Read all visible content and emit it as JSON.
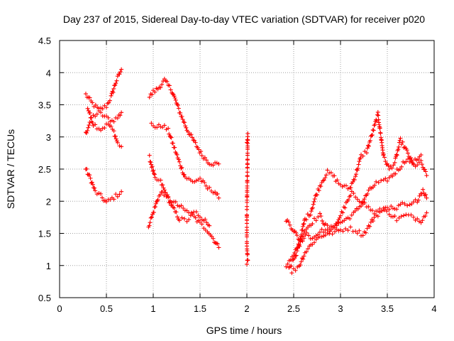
{
  "chart_data": {
    "type": "scatter",
    "title": "Day 237 of 2015, Sidereal Day-to-day VTEC variation (SDTVAR) for receiver p020",
    "xlabel": "GPS time / hours",
    "ylabel": "SDTVAR / TECUs",
    "xlim": [
      0,
      4
    ],
    "ylim": [
      0.5,
      4.5
    ],
    "xticks": [
      0,
      0.5,
      1,
      1.5,
      2,
      2.5,
      3,
      3.5,
      4
    ],
    "xtick_labels": [
      "0",
      "0.5",
      "1",
      "1.5",
      "2",
      "2.5",
      "3",
      "3.5",
      "4"
    ],
    "yticks": [
      0.5,
      1,
      1.5,
      2,
      2.5,
      3,
      3.5,
      4,
      4.5
    ],
    "ytick_labels": [
      "0.5",
      "1",
      "1.5",
      "2",
      "2.5",
      "3",
      "3.5",
      "4",
      "4.5"
    ],
    "grid": true,
    "marker": "+",
    "color": "#ff0000",
    "tracks": [
      [
        [
          0.28,
          3.66
        ],
        [
          0.35,
          3.52
        ],
        [
          0.42,
          3.42
        ],
        [
          0.5,
          3.48
        ],
        [
          0.55,
          3.62
        ],
        [
          0.6,
          3.85
        ],
        [
          0.66,
          4.05
        ]
      ],
      [
        [
          0.28,
          3.05
        ],
        [
          0.34,
          3.3
        ],
        [
          0.42,
          3.38
        ],
        [
          0.5,
          3.3
        ],
        [
          0.56,
          3.25
        ],
        [
          0.62,
          3.3
        ],
        [
          0.66,
          3.38
        ]
      ],
      [
        [
          0.3,
          3.45
        ],
        [
          0.36,
          3.2
        ],
        [
          0.44,
          3.12
        ],
        [
          0.52,
          3.2
        ],
        [
          0.58,
          3.08
        ],
        [
          0.62,
          2.9
        ],
        [
          0.66,
          2.85
        ]
      ],
      [
        [
          0.28,
          2.5
        ],
        [
          0.33,
          2.35
        ],
        [
          0.38,
          2.15
        ],
        [
          0.44,
          2.08
        ],
        [
          0.5,
          1.98
        ],
        [
          0.56,
          2.04
        ],
        [
          0.62,
          2.1
        ],
        [
          0.66,
          2.15
        ]
      ],
      [
        [
          0.96,
          3.62
        ],
        [
          1.0,
          3.7
        ],
        [
          1.05,
          3.75
        ],
        [
          1.12,
          3.88
        ],
        [
          1.2,
          3.72
        ],
        [
          1.28,
          3.4
        ],
        [
          1.36,
          3.12
        ],
        [
          1.44,
          2.92
        ],
        [
          1.52,
          2.72
        ],
        [
          1.6,
          2.6
        ],
        [
          1.66,
          2.58
        ],
        [
          1.7,
          2.58
        ]
      ],
      [
        [
          0.98,
          3.2
        ],
        [
          1.04,
          3.15
        ],
        [
          1.1,
          3.18
        ],
        [
          1.16,
          3.1
        ],
        [
          1.22,
          2.85
        ],
        [
          1.28,
          2.6
        ],
        [
          1.34,
          2.38
        ],
        [
          1.42,
          2.3
        ],
        [
          1.5,
          2.35
        ],
        [
          1.58,
          2.2
        ],
        [
          1.66,
          2.15
        ],
        [
          1.7,
          2.05
        ]
      ],
      [
        [
          0.96,
          2.68
        ],
        [
          1.02,
          2.35
        ],
        [
          1.08,
          2.3
        ],
        [
          1.14,
          2.1
        ],
        [
          1.2,
          1.92
        ],
        [
          1.28,
          1.72
        ],
        [
          1.36,
          1.7
        ],
        [
          1.42,
          1.78
        ],
        [
          1.5,
          1.65
        ],
        [
          1.58,
          1.55
        ],
        [
          1.64,
          1.42
        ],
        [
          1.7,
          1.28
        ]
      ],
      [
        [
          0.95,
          1.62
        ],
        [
          1.0,
          1.82
        ],
        [
          1.05,
          2.05
        ],
        [
          1.1,
          2.15
        ],
        [
          1.16,
          2.05
        ],
        [
          1.22,
          1.98
        ],
        [
          1.3,
          1.9
        ],
        [
          1.38,
          1.82
        ],
        [
          1.46,
          1.82
        ],
        [
          1.54,
          1.72
        ],
        [
          1.6,
          1.62
        ]
      ],
      [
        [
          2.0,
          2.95
        ],
        [
          2.01,
          3.02
        ],
        [
          2.0,
          1.82
        ],
        [
          2.0,
          1.4
        ],
        [
          2.0,
          1.32
        ],
        [
          2.01,
          1.08
        ],
        [
          2.0,
          1.02
        ]
      ],
      [
        [
          2.42,
          1.72
        ],
        [
          2.5,
          1.55
        ],
        [
          2.56,
          1.4
        ],
        [
          2.62,
          1.55
        ],
        [
          2.7,
          1.68
        ],
        [
          2.78,
          1.78
        ],
        [
          2.84,
          1.62
        ],
        [
          2.9,
          1.58
        ],
        [
          2.98,
          1.65
        ],
        [
          3.06,
          1.72
        ],
        [
          3.14,
          1.8
        ],
        [
          3.22,
          1.95
        ],
        [
          3.3,
          2.15
        ],
        [
          3.38,
          2.28
        ],
        [
          3.46,
          2.3
        ],
        [
          3.54,
          2.38
        ],
        [
          3.62,
          2.5
        ],
        [
          3.7,
          2.65
        ],
        [
          3.78,
          2.6
        ],
        [
          3.86,
          2.72
        ]
      ],
      [
        [
          2.42,
          1.0
        ],
        [
          2.5,
          1.15
        ],
        [
          2.56,
          1.35
        ],
        [
          2.62,
          1.72
        ],
        [
          2.68,
          1.82
        ],
        [
          2.74,
          2.1
        ],
        [
          2.8,
          2.3
        ],
        [
          2.86,
          2.45
        ],
        [
          2.92,
          2.4
        ],
        [
          2.98,
          2.28
        ],
        [
          3.04,
          2.22
        ],
        [
          3.1,
          2.2
        ],
        [
          3.16,
          2.4
        ],
        [
          3.22,
          2.7
        ],
        [
          3.28,
          2.78
        ],
        [
          3.34,
          3.05
        ],
        [
          3.4,
          3.35
        ],
        [
          3.46,
          2.7
        ],
        [
          3.52,
          2.5
        ],
        [
          3.58,
          2.6
        ],
        [
          3.64,
          2.95
        ],
        [
          3.7,
          2.8
        ],
        [
          3.78,
          2.55
        ],
        [
          3.86,
          2.6
        ],
        [
          3.92,
          2.4
        ]
      ],
      [
        [
          2.45,
          0.95
        ],
        [
          2.52,
          1.15
        ],
        [
          2.58,
          1.38
        ],
        [
          2.64,
          1.5
        ],
        [
          2.7,
          1.42
        ],
        [
          2.76,
          1.5
        ],
        [
          2.82,
          1.55
        ],
        [
          2.88,
          1.52
        ],
        [
          2.94,
          1.6
        ],
        [
          3.0,
          1.78
        ],
        [
          3.06,
          1.95
        ],
        [
          3.12,
          2.12
        ],
        [
          3.18,
          2.05
        ],
        [
          3.24,
          1.98
        ],
        [
          3.3,
          1.9
        ],
        [
          3.36,
          1.82
        ],
        [
          3.42,
          1.85
        ],
        [
          3.5,
          1.92
        ],
        [
          3.58,
          1.86
        ],
        [
          3.66,
          1.95
        ],
        [
          3.74,
          1.92
        ],
        [
          3.82,
          2.02
        ],
        [
          3.88,
          2.18
        ],
        [
          3.92,
          2.05
        ]
      ],
      [
        [
          2.48,
          0.9
        ],
        [
          2.56,
          1.0
        ],
        [
          2.62,
          1.2
        ],
        [
          2.7,
          1.35
        ],
        [
          2.78,
          1.45
        ],
        [
          2.86,
          1.5
        ],
        [
          2.94,
          1.52
        ],
        [
          3.0,
          1.55
        ],
        [
          3.08,
          1.58
        ],
        [
          3.16,
          1.55
        ],
        [
          3.24,
          1.48
        ],
        [
          3.3,
          1.6
        ],
        [
          3.36,
          1.75
        ],
        [
          3.44,
          1.85
        ],
        [
          3.52,
          1.82
        ],
        [
          3.6,
          1.72
        ],
        [
          3.7,
          1.78
        ],
        [
          3.78,
          1.75
        ],
        [
          3.86,
          1.7
        ],
        [
          3.92,
          1.82
        ]
      ]
    ]
  }
}
